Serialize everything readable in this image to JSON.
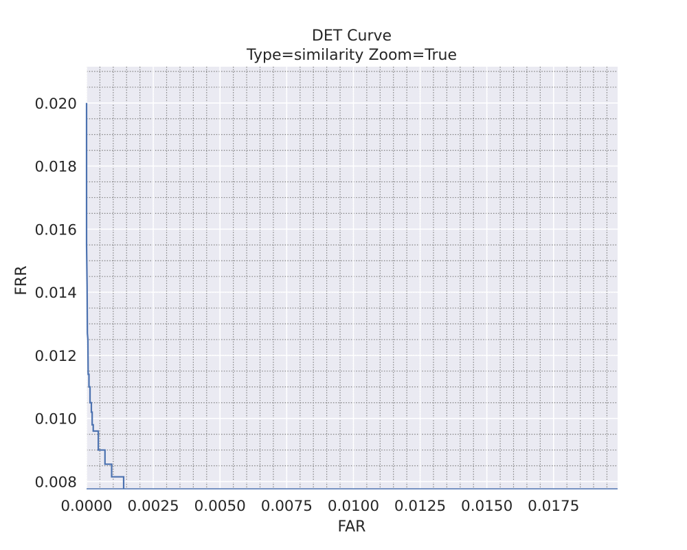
{
  "chart_data": {
    "type": "line",
    "title": "DET Curve",
    "subtitle": "Type=similarity Zoom=True",
    "xlabel": "FAR",
    "ylabel": "FRR",
    "xlim": [
      0.0,
      0.0199
    ],
    "ylim": [
      0.00777,
      0.02115
    ],
    "xticks": [
      0.0,
      0.0025,
      0.005,
      0.0075,
      0.01,
      0.0125,
      0.015,
      0.0175
    ],
    "xtick_labels": [
      "0.0000",
      "0.0025",
      "0.0050",
      "0.0075",
      "0.0100",
      "0.0125",
      "0.0150",
      "0.0175"
    ],
    "yticks": [
      0.008,
      0.01,
      0.012,
      0.014,
      0.016,
      0.018,
      0.02
    ],
    "ytick_labels": [
      "0.008",
      "0.010",
      "0.012",
      "0.014",
      "0.016",
      "0.018",
      "0.020"
    ],
    "x_minor_step": 0.0005,
    "y_minor_step": 0.0005,
    "grid": true,
    "minor_grid": true,
    "series": [
      {
        "color": "#4c72b0",
        "x": [
          0.0,
          0.0,
          2e-05,
          3e-05,
          5e-05,
          6e-05,
          9e-05,
          9e-05,
          0.00013,
          0.00013,
          0.00018,
          0.00018,
          0.00021,
          0.00021,
          0.00025,
          0.00025,
          0.00044,
          0.00044,
          0.00047,
          0.00047,
          0.00069,
          0.00069,
          0.00094,
          0.00094,
          0.00139,
          0.00139
        ],
        "y": [
          0.02,
          0.0155,
          0.0142,
          0.0127,
          0.0125,
          0.0114,
          0.0114,
          0.011,
          0.011,
          0.0105,
          0.0105,
          0.0102,
          0.0102,
          0.0098,
          0.0098,
          0.0096,
          0.0096,
          0.009,
          0.009,
          0.009,
          0.009,
          0.00855,
          0.00855,
          0.00815,
          0.00815,
          0.00777
        ]
      }
    ]
  }
}
